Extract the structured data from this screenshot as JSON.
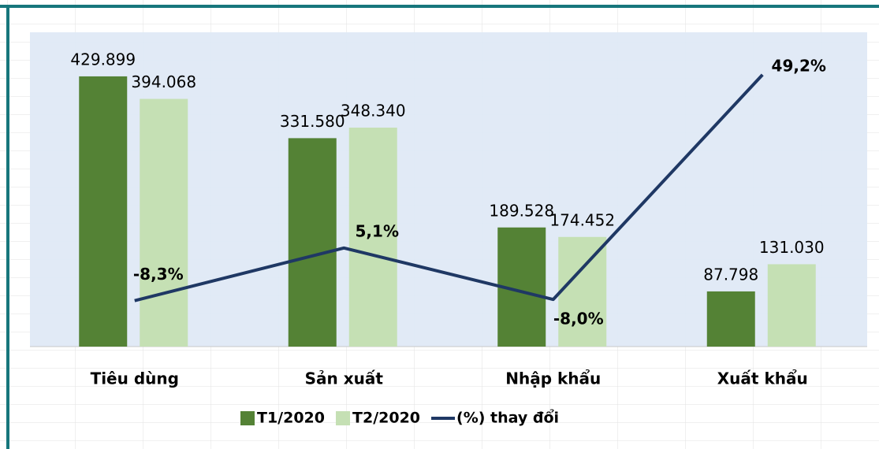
{
  "chart_data": {
    "type": "bar",
    "categories": [
      "Tiêu dùng",
      "Sản xuất",
      "Nhập khẩu",
      "Xuất khẩu"
    ],
    "series": [
      {
        "name": "T1/2020",
        "color": "#548235",
        "values": [
          429899,
          331580,
          189528,
          87798
        ],
        "value_labels": [
          "429.899",
          "331.580",
          "189.528",
          "87.798"
        ]
      },
      {
        "name": "T2/2020",
        "color": "#c5e0b4",
        "values": [
          394068,
          348340,
          174452,
          131030
        ],
        "value_labels": [
          "394.068",
          "348.340",
          "174.452",
          "131.030"
        ]
      },
      {
        "name": "(%) thay đổi",
        "color": "#1f3864",
        "type": "line",
        "axis": "y2",
        "values": [
          -8.3,
          5.1,
          -8.0,
          49.2
        ],
        "value_labels": [
          "-8,3%",
          "5,1%",
          "-8,0%",
          "49,2%"
        ]
      }
    ],
    "ylim": [
      0,
      500000
    ],
    "y2lim": [
      -20,
      60
    ]
  }
}
